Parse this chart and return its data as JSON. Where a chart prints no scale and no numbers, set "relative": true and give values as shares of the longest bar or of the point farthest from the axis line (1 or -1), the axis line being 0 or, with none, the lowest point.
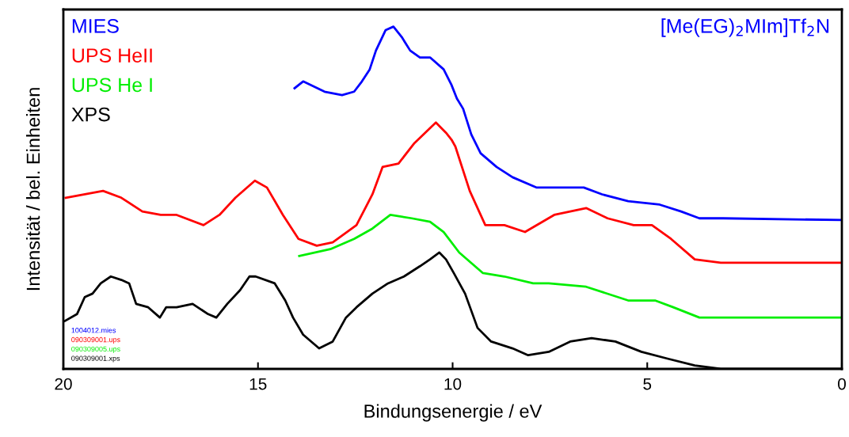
{
  "chart_data": {
    "type": "line",
    "title": "[Me(EG)$_{2}$MIm]Tf$_{2}$N",
    "xlabel": "Bindungsenergie / eV",
    "ylabel": "Intensität / bel. Einheiten",
    "relative": true,
    "xlim": [
      20,
      0
    ],
    "xticks": [
      20,
      15,
      10,
      5,
      0
    ],
    "legend": "top left",
    "grid": false,
    "marker": "none",
    "line_style": "solid",
    "annotations": [
      "1004012.mies",
      "090309001.ups",
      "090309005.ups",
      "090309001.xps"
    ],
    "series": [
      {
        "name": "MIES",
        "color": "#0000ff",
        "x": [
          14.06,
          13.84,
          13.29,
          12.84,
          12.53,
          12.33,
          12.13,
          11.97,
          11.72,
          11.52,
          11.31,
          11.09,
          10.84,
          10.58,
          10.23,
          10.03,
          9.89,
          9.73,
          9.52,
          9.28,
          8.87,
          8.46,
          7.85,
          7.18,
          6.63,
          6.16,
          5.49,
          4.68,
          4.13,
          3.66,
          3.05,
          0
        ],
        "values": [
          0.82,
          0.84,
          0.81,
          0.8,
          0.81,
          0.84,
          0.875,
          0.93,
          0.99,
          1.0,
          0.97,
          0.93,
          0.91,
          0.91,
          0.875,
          0.83,
          0.79,
          0.76,
          0.685,
          0.63,
          0.59,
          0.56,
          0.53,
          0.53,
          0.53,
          0.51,
          0.49,
          0.48,
          0.46,
          0.44,
          0.44,
          0.435
        ]
      },
      {
        "name": "UPS HeII",
        "color": "#ff0000",
        "x": [
          19.94,
          18.98,
          18.51,
          17.97,
          17.5,
          17.09,
          16.4,
          15.99,
          15.58,
          15.08,
          14.77,
          14.36,
          13.96,
          13.49,
          13.08,
          12.47,
          12.06,
          11.8,
          11.39,
          10.98,
          10.43,
          10.17,
          10.03,
          9.93,
          9.56,
          9.16,
          8.67,
          8.14,
          7.39,
          6.57,
          6.02,
          5.35,
          4.88,
          4.39,
          3.78,
          3.11,
          1.75,
          0
        ],
        "values": [
          0.5,
          0.52,
          0.5,
          0.46,
          0.45,
          0.45,
          0.42,
          0.45,
          0.5,
          0.55,
          0.53,
          0.45,
          0.38,
          0.36,
          0.37,
          0.42,
          0.51,
          0.59,
          0.6,
          0.66,
          0.72,
          0.69,
          0.67,
          0.65,
          0.52,
          0.42,
          0.42,
          0.4,
          0.45,
          0.47,
          0.44,
          0.42,
          0.42,
          0.38,
          0.32,
          0.31,
          0.31,
          0.31
        ]
      },
      {
        "name": "UPS He I",
        "color": "#00ee00",
        "x": [
          13.94,
          13.14,
          12.53,
          12.06,
          11.6,
          11.05,
          10.58,
          10.23,
          9.83,
          9.22,
          8.67,
          7.93,
          7.53,
          6.57,
          5.49,
          4.8,
          4.33,
          3.66,
          3.05,
          0
        ],
        "values": [
          0.33,
          0.35,
          0.38,
          0.41,
          0.45,
          0.44,
          0.43,
          0.4,
          0.34,
          0.28,
          0.27,
          0.25,
          0.25,
          0.24,
          0.2,
          0.2,
          0.18,
          0.15,
          0.15,
          0.15
        ]
      },
      {
        "name": "XPS",
        "color": "#000000",
        "x": [
          19.96,
          19.65,
          19.45,
          19.25,
          19.04,
          18.78,
          18.51,
          18.31,
          18.13,
          17.82,
          17.52,
          17.36,
          17.09,
          16.68,
          16.28,
          16.07,
          15.79,
          15.46,
          15.22,
          15.06,
          14.57,
          14.3,
          14.1,
          13.84,
          13.43,
          13.08,
          12.74,
          12.47,
          12.06,
          11.66,
          11.25,
          10.84,
          10.58,
          10.34,
          10.17,
          9.97,
          9.68,
          9.36,
          9.01,
          8.46,
          8.06,
          7.53,
          6.98,
          6.43,
          5.82,
          5.15,
          4.48,
          3.78,
          3.11,
          0
        ],
        "values": [
          0.14,
          0.16,
          0.21,
          0.22,
          0.25,
          0.27,
          0.26,
          0.25,
          0.19,
          0.18,
          0.15,
          0.18,
          0.18,
          0.19,
          0.16,
          0.15,
          0.19,
          0.23,
          0.27,
          0.27,
          0.25,
          0.2,
          0.15,
          0.1,
          0.06,
          0.08,
          0.15,
          0.18,
          0.22,
          0.25,
          0.27,
          0.3,
          0.32,
          0.34,
          0.32,
          0.28,
          0.22,
          0.12,
          0.08,
          0.06,
          0.04,
          0.05,
          0.08,
          0.09,
          0.08,
          0.05,
          0.03,
          0.01,
          0.0,
          0.0
        ]
      }
    ]
  }
}
